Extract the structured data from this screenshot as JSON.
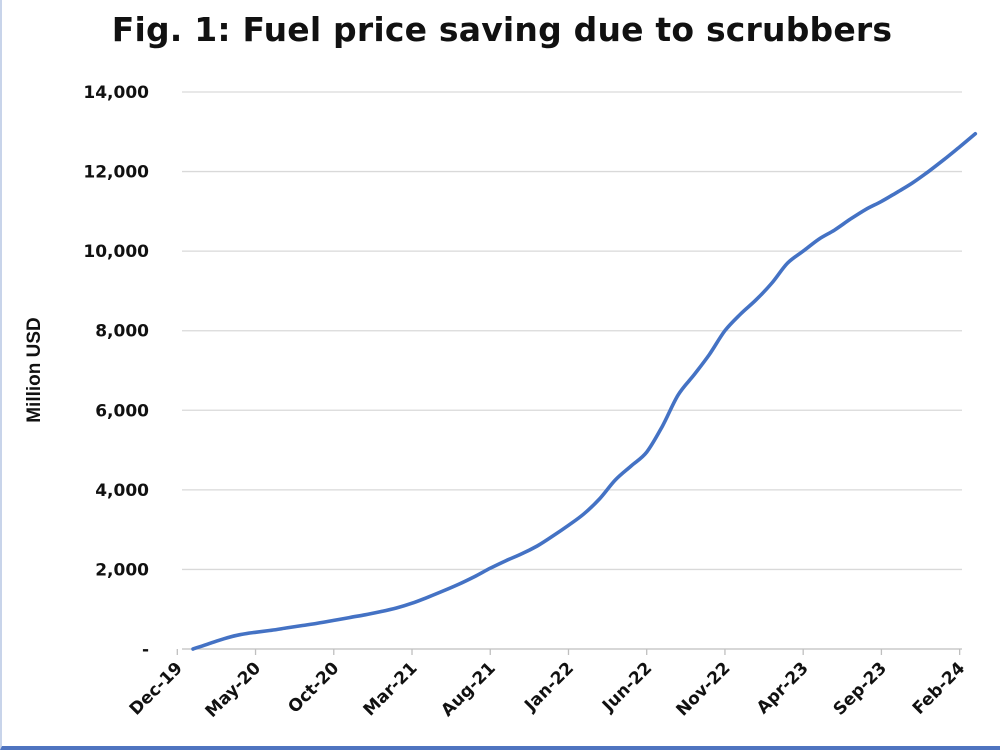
{
  "chart_data": {
    "type": "line",
    "title": "Fig. 1: Fuel price saving due to scrubbers",
    "xlabel": "",
    "ylabel": "Million USD",
    "ylim": [
      0,
      14000
    ],
    "y_ticks": [
      "-",
      "2,000",
      "4,000",
      "6,000",
      "8,000",
      "10,000",
      "12,000",
      "14,000"
    ],
    "y_tick_values": [
      0,
      2000,
      4000,
      6000,
      8000,
      10000,
      12000,
      14000
    ],
    "x_ticks": [
      "Dec-19",
      "May-20",
      "Oct-20",
      "Mar-21",
      "Aug-21",
      "Jan-22",
      "Jun-22",
      "Nov-22",
      "Apr-23",
      "Sep-23",
      "Feb-24"
    ],
    "x_range": [
      "2019-12",
      "2024-02"
    ],
    "grid": "horizontal",
    "legend": "none",
    "line_color": "#4472c4",
    "series": [
      {
        "name": "",
        "points": [
          [
            "2020-01",
            0
          ],
          [
            "2020-02",
            130
          ],
          [
            "2020-03",
            260
          ],
          [
            "2020-04",
            360
          ],
          [
            "2020-05",
            420
          ],
          [
            "2020-06",
            470
          ],
          [
            "2020-07",
            530
          ],
          [
            "2020-08",
            590
          ],
          [
            "2020-09",
            650
          ],
          [
            "2020-10",
            720
          ],
          [
            "2020-11",
            790
          ],
          [
            "2020-12",
            860
          ],
          [
            "2021-01",
            940
          ],
          [
            "2021-02",
            1030
          ],
          [
            "2021-03",
            1150
          ],
          [
            "2021-04",
            1300
          ],
          [
            "2021-05",
            1460
          ],
          [
            "2021-06",
            1630
          ],
          [
            "2021-07",
            1820
          ],
          [
            "2021-08",
            2030
          ],
          [
            "2021-09",
            2220
          ],
          [
            "2021-10",
            2390
          ],
          [
            "2021-11",
            2590
          ],
          [
            "2021-12",
            2840
          ],
          [
            "2022-01",
            3110
          ],
          [
            "2022-02",
            3400
          ],
          [
            "2022-03",
            3780
          ],
          [
            "2022-04",
            4250
          ],
          [
            "2022-05",
            4600
          ],
          [
            "2022-06",
            4950
          ],
          [
            "2022-07",
            5600
          ],
          [
            "2022-08",
            6380
          ],
          [
            "2022-09",
            6880
          ],
          [
            "2022-10",
            7400
          ],
          [
            "2022-11",
            8000
          ],
          [
            "2022-12",
            8420
          ],
          [
            "2023-01",
            8780
          ],
          [
            "2023-02",
            9200
          ],
          [
            "2023-03",
            9700
          ],
          [
            "2023-04",
            10000
          ],
          [
            "2023-05",
            10300
          ],
          [
            "2023-06",
            10530
          ],
          [
            "2023-07",
            10800
          ],
          [
            "2023-08",
            11050
          ],
          [
            "2023-09",
            11250
          ],
          [
            "2023-10",
            11480
          ],
          [
            "2023-11",
            11720
          ],
          [
            "2023-12",
            12000
          ],
          [
            "2024-01",
            12300
          ],
          [
            "2024-02",
            12620
          ],
          [
            "2024-03",
            12950
          ]
        ]
      }
    ]
  }
}
